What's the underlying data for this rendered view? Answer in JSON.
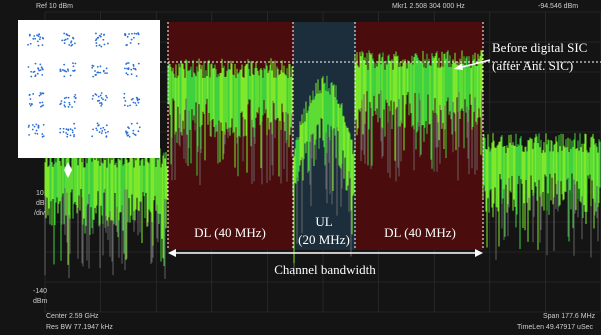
{
  "header": {
    "ref_level": "Ref 10 dBm",
    "marker_freq": "Mkr1  2.508 304 000 Hz",
    "marker_level": "-94.546 dBm"
  },
  "axis": {
    "scale": "10",
    "scale_unit": "dB",
    "scale_per": "/div",
    "bottom_level": "-140",
    "bottom_unit": "dBm"
  },
  "footer": {
    "center": "Center 2.59 GHz",
    "res_bw": "Res BW 77.1947 kHz",
    "span": "Span 177.6 MHz",
    "time_len": "TimeLen 49.47917 uSec"
  },
  "annotations": {
    "before_sic": "Before digital SIC",
    "after_ant_sic": "(after Ant. SIC)",
    "dl_left": "DL (40 MHz)",
    "ul_line1": "UL",
    "ul_line2": "(20 MHz)",
    "dl_right": "DL (40 MHz)",
    "channel_bandwidth": "Channel bandwidth"
  }
}
